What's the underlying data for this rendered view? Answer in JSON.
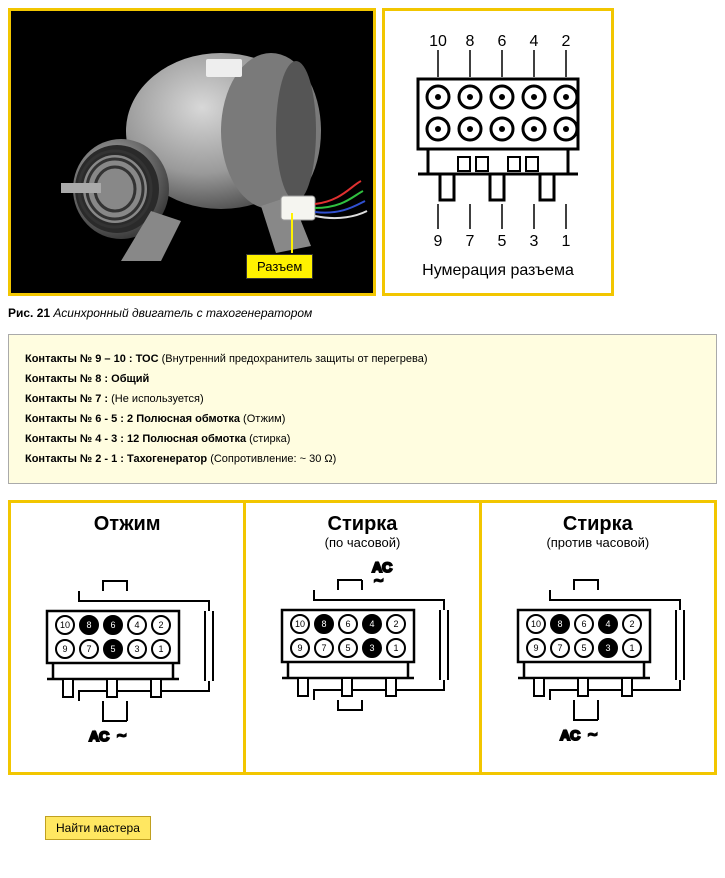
{
  "callout_label": "Разъем",
  "pinout": {
    "top_numbers": [
      "10",
      "8",
      "6",
      "4",
      "2"
    ],
    "bottom_numbers": [
      "9",
      "7",
      "5",
      "3",
      "1"
    ],
    "label": "Нумерация разъема"
  },
  "caption": {
    "fig": "Рис. 21",
    "title": "Асинхронный двигатель с тахогенератором"
  },
  "contacts": [
    {
      "label": "Контакты № 9 – 10 : ТОС",
      "desc": "(Внутренний предохранитель защиты от перегрева)"
    },
    {
      "label": "Контакты № 8 : Общий",
      "desc": ""
    },
    {
      "label": "Контакты № 7 :",
      "desc": "(Не используется)"
    },
    {
      "label": "Контакты № 6 - 5 : 2 Полюсная обмотка",
      "desc": "(Отжим)"
    },
    {
      "label": "Контакты № 4 - 3 : 12 Полюсная обмотка",
      "desc": "(стирка)"
    },
    {
      "label": "Контакты № 2 - 1 : Тахогенератор",
      "desc": "(Сопротивление: ~ 30 Ω)"
    }
  ],
  "modes": [
    {
      "title": "Отжим",
      "sub": "",
      "ac_pos": "bottom",
      "filled": [
        "8",
        "6",
        "5"
      ],
      "hollow": [
        "10",
        "4",
        "2",
        "9",
        "7",
        "3",
        "1"
      ]
    },
    {
      "title": "Стирка",
      "sub": "(по часовой)",
      "ac_pos": "top",
      "filled": [
        "8",
        "4",
        "3"
      ],
      "hollow": [
        "10",
        "6",
        "2",
        "9",
        "7",
        "5",
        "1"
      ]
    },
    {
      "title": "Стирка",
      "sub": "(против часовой)",
      "ac_pos": "bottom",
      "filled": [
        "8",
        "4",
        "3"
      ],
      "hollow": [
        "10",
        "6",
        "2",
        "9",
        "7",
        "5",
        "1"
      ]
    }
  ],
  "find_master": "Найти мастера",
  "colors": {
    "accent": "#f2c600",
    "info_bg": "#fffde0",
    "btn_bg": "#ffe761"
  }
}
